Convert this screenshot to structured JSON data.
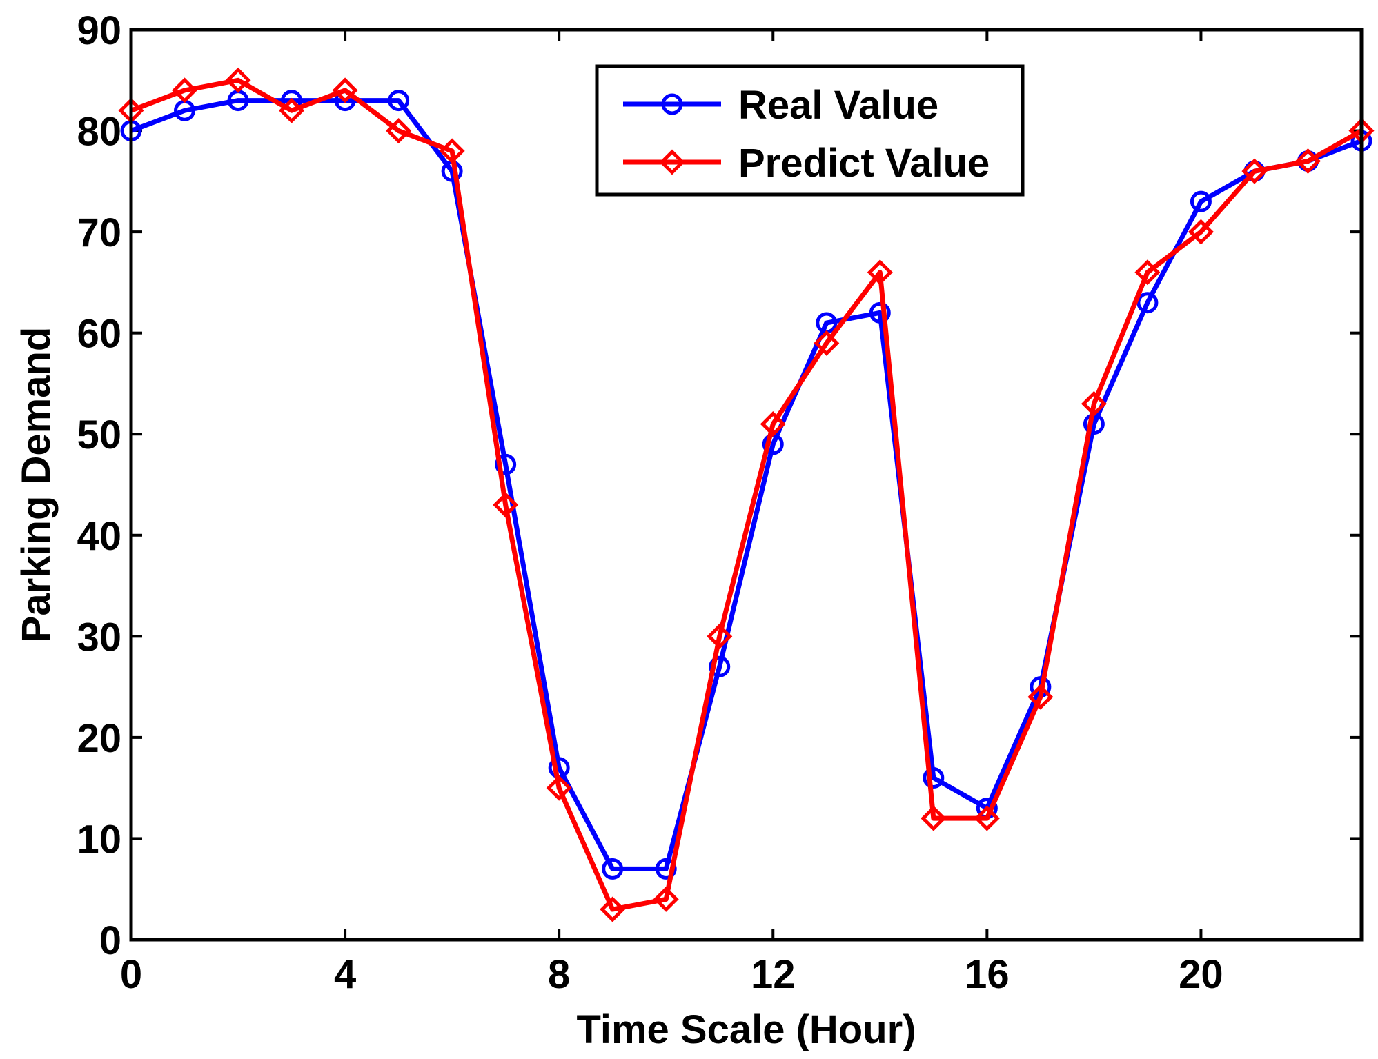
{
  "chart_data": {
    "type": "line",
    "title": "",
    "xlabel": "Time Scale (Hour)",
    "ylabel": "Parking Demand",
    "xlim": [
      0,
      23
    ],
    "ylim": [
      0,
      90
    ],
    "xticks": [
      0,
      4,
      8,
      12,
      16,
      20
    ],
    "yticks": [
      0,
      10,
      20,
      30,
      40,
      50,
      60,
      70,
      80,
      90
    ],
    "grid": false,
    "legend_position": "top-center",
    "x": [
      0,
      1,
      2,
      3,
      4,
      5,
      6,
      7,
      8,
      9,
      10,
      11,
      12,
      13,
      14,
      15,
      16,
      17,
      18,
      19,
      20,
      21,
      22,
      23
    ],
    "series": [
      {
        "name": "Real Value",
        "color": "#0000ff",
        "marker": "circle",
        "values": [
          80,
          82,
          83,
          83,
          83,
          83,
          76,
          47,
          17,
          7,
          7,
          27,
          49,
          61,
          62,
          16,
          13,
          25,
          51,
          63,
          73,
          76,
          77,
          79
        ]
      },
      {
        "name": "Predict Value",
        "color": "#ff0000",
        "marker": "diamond",
        "values": [
          82,
          84,
          85,
          82,
          84,
          80,
          78,
          43,
          15,
          3,
          4,
          30,
          51,
          59,
          66,
          12,
          12,
          24,
          53,
          66,
          70,
          76,
          77,
          80
        ]
      }
    ]
  }
}
